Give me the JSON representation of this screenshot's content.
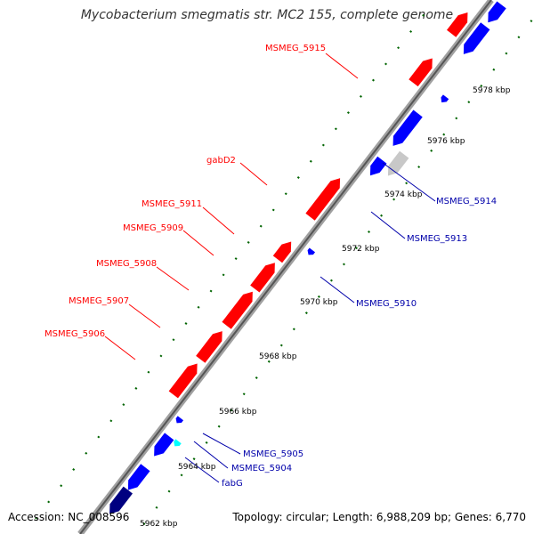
{
  "title": "Mycobacterium smegmatis str. MC2 155, complete genome",
  "footer": {
    "accession": "Accession: NC_008596",
    "topology": "Topology: circular; Length: 6,988,209 bp; Genes: 6,770"
  },
  "colors": {
    "forward_gene": "#ff0000",
    "reverse_gene": "#0000ff",
    "highlight_gene": "#00ffff",
    "other_gene": "#c8c8c8",
    "dark_gene": "#000080",
    "backbone": "#808080",
    "tick": "#006400",
    "forward_label": "#ff0000",
    "reverse_label": "#0000aa"
  },
  "scale_labels": [
    "5962 kbp",
    "5964 kbp",
    "5966 kbp",
    "5968 kbp",
    "5970 kbp",
    "5972 kbp",
    "5974 kbp",
    "5976 kbp",
    "5978 kbp"
  ],
  "forward_gene_labels": [
    "MSMEG_5915",
    "gabD2",
    "MSMEG_5911",
    "MSMEG_5909",
    "MSMEG_5908",
    "MSMEG_5907",
    "MSMEG_5906"
  ],
  "reverse_gene_labels": [
    "MSMEG_5914",
    "MSMEG_5913",
    "MSMEG_5910",
    "MSMEG_5905",
    "MSMEG_5904",
    "fabG"
  ]
}
